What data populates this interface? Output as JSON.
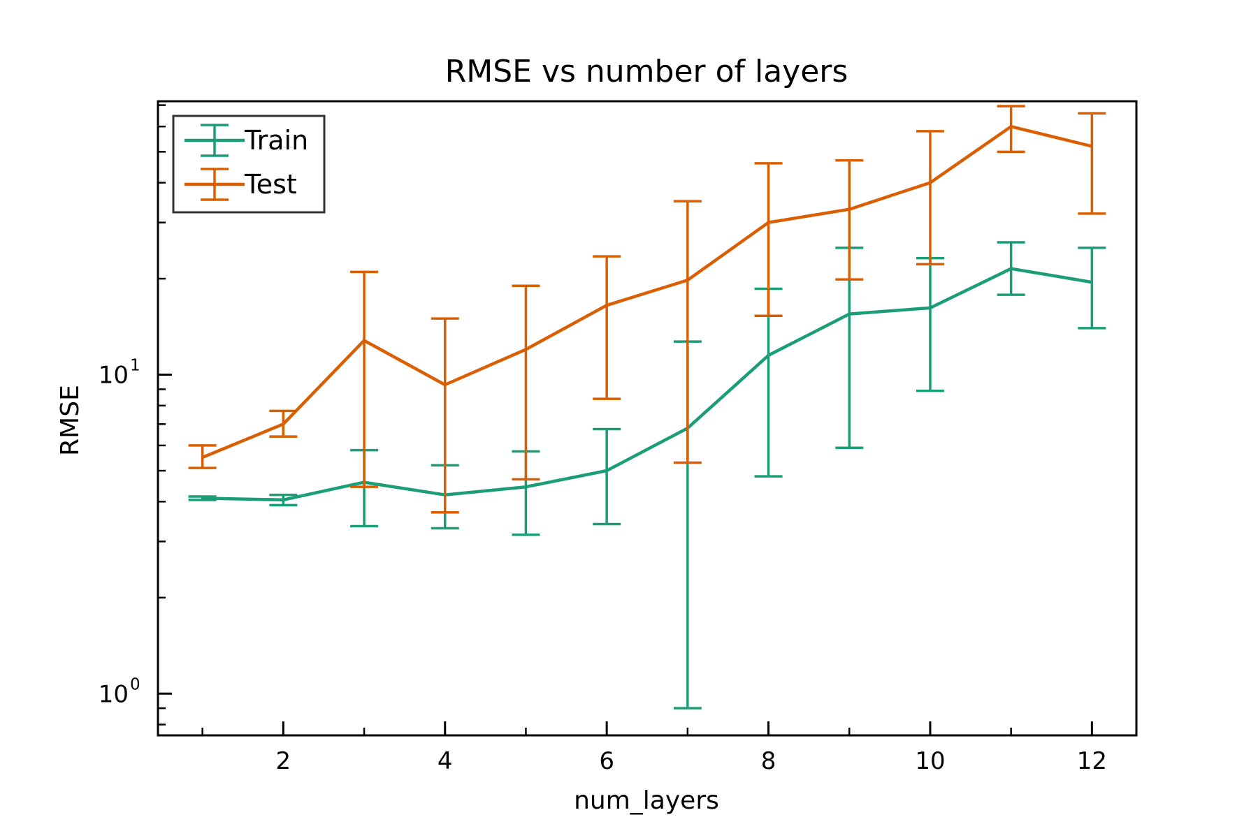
{
  "chart_data": {
    "type": "line",
    "title": "RMSE vs number of layers",
    "xlabel": "num_layers",
    "ylabel": "RMSE",
    "y_scale": "log",
    "xlim": [
      0.45,
      12.55
    ],
    "ylim": [
      0.74,
      72
    ],
    "x_ticks": [
      2,
      4,
      6,
      8,
      10,
      12
    ],
    "x_minor_ticks": [
      1,
      3,
      5,
      7,
      9,
      11
    ],
    "y_ticks": [
      {
        "value": 1,
        "base": "10",
        "exp": "0"
      },
      {
        "value": 10,
        "base": "10",
        "exp": "1"
      }
    ],
    "y_minor_ticks": [
      0.8,
      0.9,
      2,
      3,
      4,
      5,
      6,
      7,
      8,
      9,
      20,
      30,
      40,
      50,
      60,
      70
    ],
    "grid": false,
    "legend_position": "top-left",
    "x": [
      1,
      2,
      3,
      4,
      5,
      6,
      7,
      8,
      9,
      10,
      11,
      12
    ],
    "series": [
      {
        "name": "Train",
        "color": "#1b9e77",
        "values": [
          4.1,
          4.05,
          4.6,
          4.2,
          4.45,
          5.0,
          6.8,
          11.5,
          15.5,
          16.2,
          21.5,
          19.5
        ],
        "err_low": [
          4.05,
          3.9,
          3.35,
          3.3,
          3.15,
          3.4,
          0.9,
          4.8,
          5.9,
          8.9,
          17.8,
          14.0
        ],
        "err_high": [
          4.15,
          4.2,
          5.8,
          5.2,
          5.75,
          6.75,
          12.7,
          18.6,
          25.0,
          23.2,
          26.0,
          25.0
        ]
      },
      {
        "name": "Test",
        "color": "#d95f02",
        "values": [
          5.5,
          7.0,
          12.8,
          9.3,
          12.0,
          16.5,
          19.8,
          30.0,
          33.0,
          40.0,
          60.0,
          52.0
        ],
        "err_low": [
          5.1,
          6.4,
          4.45,
          3.7,
          4.7,
          8.4,
          5.3,
          15.3,
          19.9,
          22.2,
          50.0,
          32.0
        ],
        "err_high": [
          6.0,
          7.7,
          21.0,
          15.0,
          19.0,
          23.5,
          35.0,
          46.0,
          47.0,
          58.0,
          69.5,
          66.0
        ]
      }
    ]
  }
}
